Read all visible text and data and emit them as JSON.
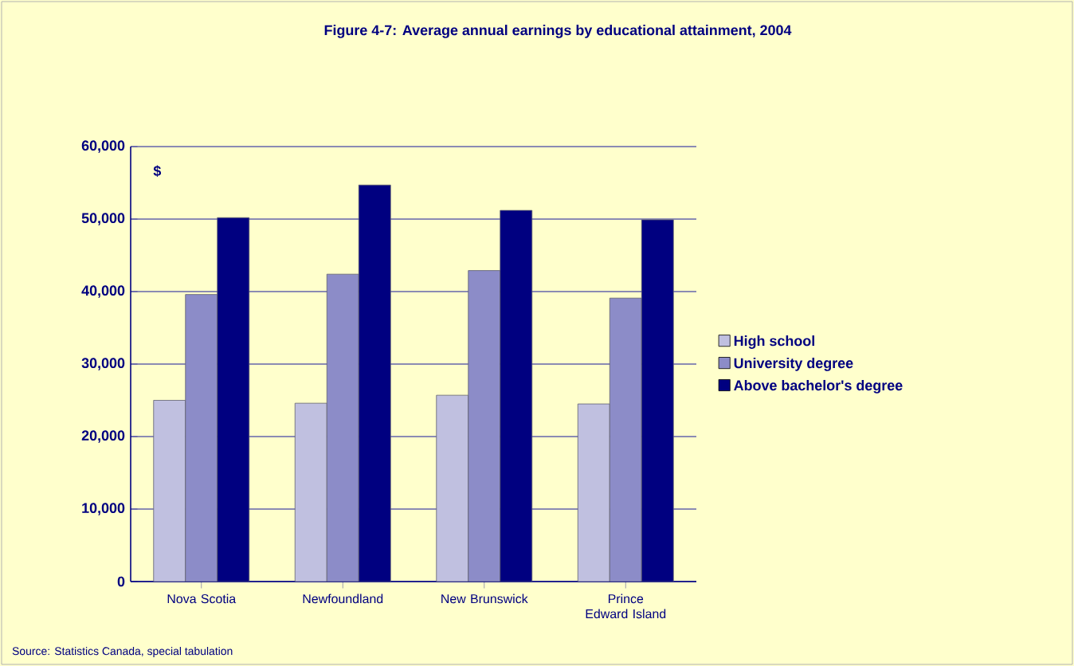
{
  "chart_data": {
    "type": "bar",
    "title": "Figure 4-7: Average annual earnings by educational attainment, 2004",
    "categories": [
      "Nova Scotia",
      "Newfoundland",
      "New Brunswick",
      "Prince Edward Island"
    ],
    "series": [
      {
        "name": "High school",
        "color": "#c0c0e0",
        "values": [
          25000,
          24600,
          25700,
          24500
        ]
      },
      {
        "name": "University degree",
        "color": "#8c8cc8",
        "values": [
          39600,
          42400,
          42900,
          39100
        ]
      },
      {
        "name": "Above bachelor's degree",
        "color": "#000080",
        "values": [
          50200,
          54700,
          51200,
          49900
        ]
      }
    ],
    "ylim": [
      0,
      60000
    ],
    "yticks": [
      {
        "value": 0,
        "label": "0"
      },
      {
        "value": 10000,
        "label": "10,000"
      },
      {
        "value": 20000,
        "label": "20,000"
      },
      {
        "value": 30000,
        "label": "30,000"
      },
      {
        "value": 40000,
        "label": "40,000"
      },
      {
        "value": 50000,
        "label": "50,000"
      },
      {
        "value": 60000,
        "label": "60,000"
      }
    ],
    "grid": "y",
    "legend": "right",
    "annotations": [
      "$",
      "Source: Statistics Canada, special tabulation"
    ]
  }
}
